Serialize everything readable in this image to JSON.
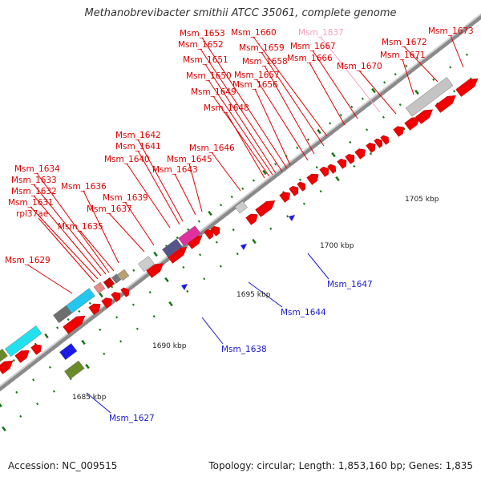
{
  "title": "Methanobrevibacter smithii ATCC 35061, complete genome",
  "footer": {
    "accession": "Accession: NC_009515",
    "summary": "Topology: circular; Length: 1,853,160 bp; Genes: 1,835"
  },
  "colors": {
    "forward_gene": "#ee0000",
    "reverse_gene": "#1a1ae6",
    "label_forward": "#dd0000",
    "label_reverse": "#1a1ad0",
    "label_highlight": "#f4a0c0",
    "backbone": "#999999",
    "tick": "#117711"
  },
  "scale": [
    {
      "label": "1685 kbp"
    },
    {
      "label": "1690 kbp"
    },
    {
      "label": "1695 kbp"
    },
    {
      "label": "1700 kbp"
    },
    {
      "label": "1705 kbp"
    }
  ],
  "gene_labels": [
    {
      "name": "Msm_1673",
      "strand": "forward"
    },
    {
      "name": "Msm_1672",
      "strand": "forward"
    },
    {
      "name": "Msm_1671",
      "strand": "forward"
    },
    {
      "name": "Msm_1670",
      "strand": "forward"
    },
    {
      "name": "Msm_1837",
      "strand": "highlight"
    },
    {
      "name": "Msm_1667",
      "strand": "forward"
    },
    {
      "name": "Msm_1666",
      "strand": "forward"
    },
    {
      "name": "Msm_1660",
      "strand": "forward"
    },
    {
      "name": "Msm_1659",
      "strand": "forward"
    },
    {
      "name": "Msm_1658",
      "strand": "forward"
    },
    {
      "name": "Msm_1657",
      "strand": "forward"
    },
    {
      "name": "Msm_1656",
      "strand": "forward"
    },
    {
      "name": "Msm_1653",
      "strand": "forward"
    },
    {
      "name": "Msm_1652",
      "strand": "forward"
    },
    {
      "name": "Msm_1651",
      "strand": "forward"
    },
    {
      "name": "Msm_1650",
      "strand": "forward"
    },
    {
      "name": "Msm_1649",
      "strand": "forward"
    },
    {
      "name": "Msm_1648",
      "strand": "forward"
    },
    {
      "name": "Msm_1646",
      "strand": "forward"
    },
    {
      "name": "Msm_1645",
      "strand": "forward"
    },
    {
      "name": "Msm_1643",
      "strand": "forward"
    },
    {
      "name": "Msm_1642",
      "strand": "forward"
    },
    {
      "name": "Msm_1641",
      "strand": "forward"
    },
    {
      "name": "Msm_1640",
      "strand": "forward"
    },
    {
      "name": "Msm_1639",
      "strand": "forward"
    },
    {
      "name": "Msm_1637",
      "strand": "forward"
    },
    {
      "name": "Msm_1636",
      "strand": "forward"
    },
    {
      "name": "Msm_1635",
      "strand": "forward"
    },
    {
      "name": "Msm_1634",
      "strand": "forward"
    },
    {
      "name": "Msm_1633",
      "strand": "forward"
    },
    {
      "name": "Msm_1632",
      "strand": "forward"
    },
    {
      "name": "Msm_1631",
      "strand": "forward"
    },
    {
      "name": "rpl37ae",
      "strand": "forward"
    },
    {
      "name": "Msm_1629",
      "strand": "forward"
    },
    {
      "name": "Msm_1647",
      "strand": "reverse"
    },
    {
      "name": "Msm_1644",
      "strand": "reverse"
    },
    {
      "name": "Msm_1638",
      "strand": "reverse"
    },
    {
      "name": "Msm_1627",
      "strand": "reverse"
    }
  ]
}
